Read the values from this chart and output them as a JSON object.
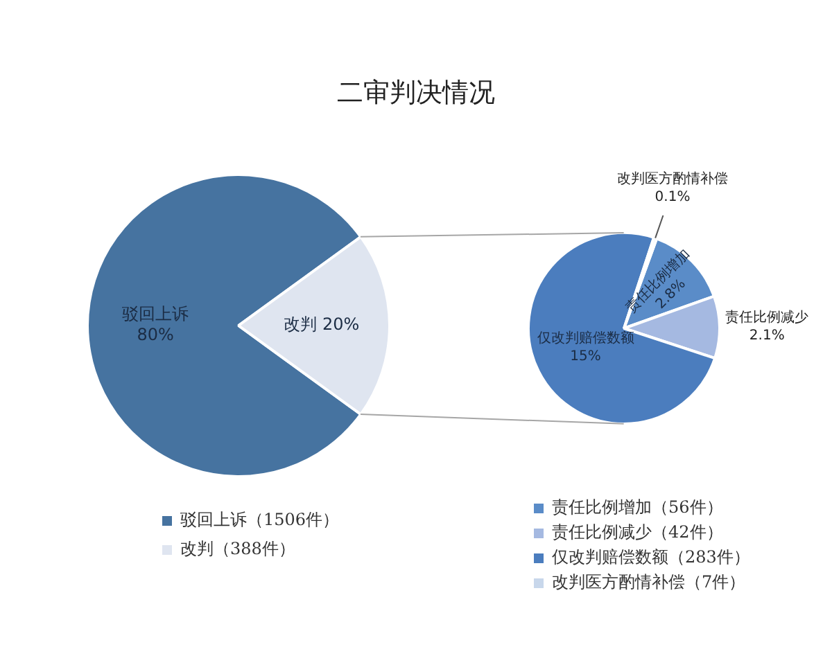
{
  "chart_data": [
    {
      "type": "pie",
      "title": "二审判决情况",
      "categories": [
        "驳回上诉（1506件）",
        "改判（388件）"
      ],
      "values": [
        80,
        20
      ],
      "colors": [
        "#4673a0",
        "#dfe5f0"
      ],
      "value_labels": [
        "驳回上诉\n80%",
        "改判 20%"
      ],
      "legend": "bottom"
    },
    {
      "type": "pie",
      "categories": [
        "责任比例增加（56件）",
        "责任比例减少（42件）",
        "仅改判赔偿数额（283件）",
        "改判医方酌情补偿（7件）"
      ],
      "values": [
        2.8,
        2.1,
        15,
        0.1
      ],
      "colors": [
        "#5a8cc8",
        "#a5b9e1",
        "#4b7dbe",
        "#c8d7eb"
      ],
      "value_labels": [
        "责任比例增加\n2.8%",
        "责任比例减少\n2.1%",
        "仅改判赔偿数额\n15%",
        "改判医方酌情补偿\n0.1%"
      ],
      "legend": "bottom"
    }
  ]
}
